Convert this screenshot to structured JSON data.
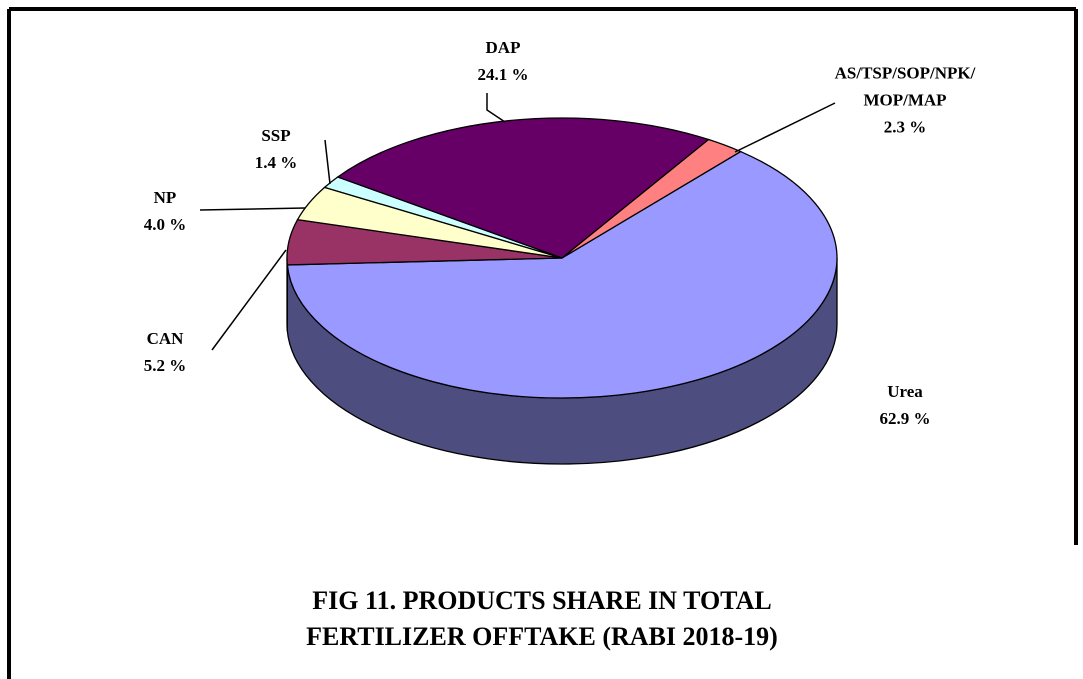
{
  "chart_data": {
    "type": "pie",
    "title": "FIG 11.  PRODUCTS SHARE IN TOTAL FERTILIZER OFFTAKE (RABI 2018-19)",
    "categories": [
      "Urea",
      "CAN",
      "NP",
      "SSP",
      "DAP",
      "AS/TSP/SOP/NPK/\nMOP/MAP"
    ],
    "values": [
      62.9,
      5.2,
      4.0,
      1.4,
      24.1,
      2.3
    ],
    "value_labels": [
      "62.9 %",
      "5.2 %",
      "4.0 %",
      "1.4 %",
      "24.1 %",
      "2.3 %"
    ],
    "colors": [
      "#9999ff",
      "#993366",
      "#ffffcc",
      "#ccffff",
      "#660066",
      "#ff8080"
    ]
  }
}
